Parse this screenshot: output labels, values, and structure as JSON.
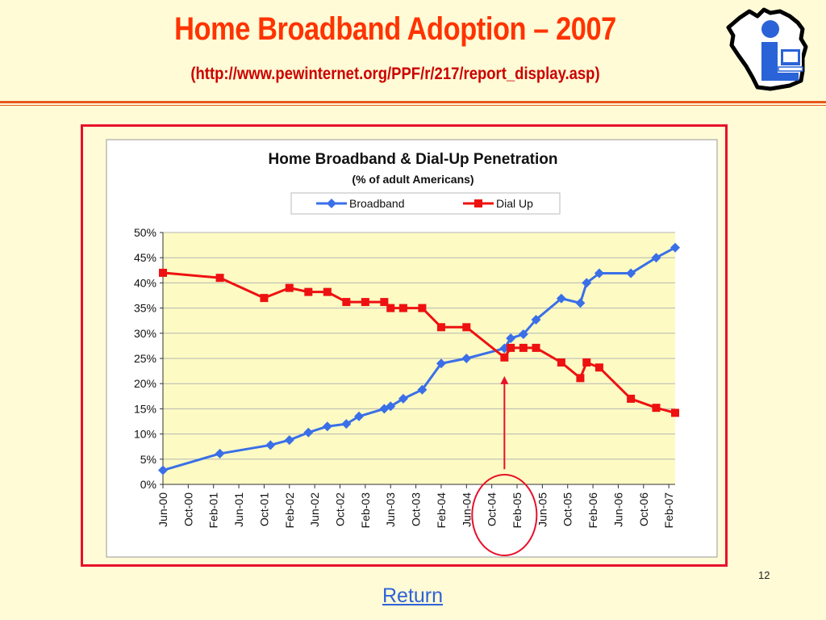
{
  "slide": {
    "title": "Home Broadband Adoption – 2007",
    "subtitle": "(http://www.pewinternet.org/PPF/r/217/report_display.asp)",
    "page_number": "12",
    "return_label": "Return"
  },
  "colors": {
    "title": "#ff3300",
    "subtitle": "#cc0000",
    "rule": "#e8571f",
    "frame": "#e8102a",
    "plot_area": "#fdfbc3",
    "broadband": "#3a6fe8",
    "dialup": "#ee1111",
    "annotation": "#e8102a",
    "link": "#2e62d9"
  },
  "chart_data": {
    "type": "line",
    "title": "Home Broadband & Dial-Up Penetration",
    "subtitle": "(% of adult Americans)",
    "xlabel": "",
    "ylabel": "",
    "ylim": [
      0,
      50
    ],
    "yticks": [
      "0%",
      "5%",
      "10%",
      "15%",
      "20%",
      "25%",
      "30%",
      "35%",
      "40%",
      "45%",
      "50%"
    ],
    "xlim": [
      "Jun-00",
      "Mar-07"
    ],
    "x_ticks": [
      "Jun-00",
      "Oct-00",
      "Feb-01",
      "Jun-01",
      "Oct-01",
      "Feb-02",
      "Jun-02",
      "Oct-02",
      "Feb-03",
      "Jun-03",
      "Oct-03",
      "Feb-04",
      "Jun-04",
      "Oct-04",
      "Feb-05",
      "Jun-05",
      "Oct-05",
      "Feb-06",
      "Jun-06",
      "Oct-06",
      "Feb-07"
    ],
    "grid": "horizontal",
    "legend": "top",
    "series": [
      {
        "name": "Broadband",
        "marker": "diamond",
        "points": [
          [
            "Jun-00",
            2.8
          ],
          [
            "Mar-01",
            6.1
          ],
          [
            "Nov-01",
            7.8
          ],
          [
            "Feb-02",
            8.8
          ],
          [
            "May-02",
            10.3
          ],
          [
            "Aug-02",
            11.5
          ],
          [
            "Nov-02",
            12.0
          ],
          [
            "Jan-03",
            13.5
          ],
          [
            "May-03",
            15.0
          ],
          [
            "Jun-03",
            15.5
          ],
          [
            "Aug-03",
            17.0
          ],
          [
            "Nov-03",
            18.8
          ],
          [
            "Feb-04",
            24.0
          ],
          [
            "Jun-04",
            25.0
          ],
          [
            "Dec-04",
            27.0
          ],
          [
            "Jan-05",
            29.0
          ],
          [
            "Mar-05",
            29.8
          ],
          [
            "May-05",
            32.7
          ],
          [
            "Sep-05",
            36.9
          ],
          [
            "Dec-05",
            36.0
          ],
          [
            "Jan-06",
            40.0
          ],
          [
            "Mar-06",
            41.9
          ],
          [
            "Aug-06",
            41.9
          ],
          [
            "Dec-06",
            45.0
          ],
          [
            "Mar-07",
            47.0
          ]
        ]
      },
      {
        "name": "Dial Up",
        "marker": "square",
        "points": [
          [
            "Jun-00",
            42.0
          ],
          [
            "Mar-01",
            41.0
          ],
          [
            "Oct-01",
            37.0
          ],
          [
            "Feb-02",
            39.0
          ],
          [
            "May-02",
            38.2
          ],
          [
            "Aug-02",
            38.2
          ],
          [
            "Nov-02",
            36.2
          ],
          [
            "Feb-03",
            36.2
          ],
          [
            "May-03",
            36.2
          ],
          [
            "Jun-03",
            35.0
          ],
          [
            "Aug-03",
            35.0
          ],
          [
            "Nov-03",
            35.0
          ],
          [
            "Feb-04",
            31.2
          ],
          [
            "Jun-04",
            31.2
          ],
          [
            "Dec-04",
            25.2
          ],
          [
            "Jan-05",
            27.1
          ],
          [
            "Mar-05",
            27.1
          ],
          [
            "May-05",
            27.1
          ],
          [
            "Sep-05",
            24.2
          ],
          [
            "Dec-05",
            21.1
          ],
          [
            "Jan-06",
            24.2
          ],
          [
            "Mar-06",
            23.2
          ],
          [
            "Aug-06",
            17.0
          ],
          [
            "Dec-06",
            15.2
          ],
          [
            "Mar-07",
            14.2
          ]
        ]
      }
    ],
    "annotations": [
      {
        "type": "arrow",
        "x": "Dec-04",
        "from_y": 3.0,
        "to_y": 21.5
      },
      {
        "type": "ellipse",
        "center_x": "Dec-04",
        "label_circled": [
          "Oct-04",
          "Feb-05"
        ]
      }
    ]
  }
}
